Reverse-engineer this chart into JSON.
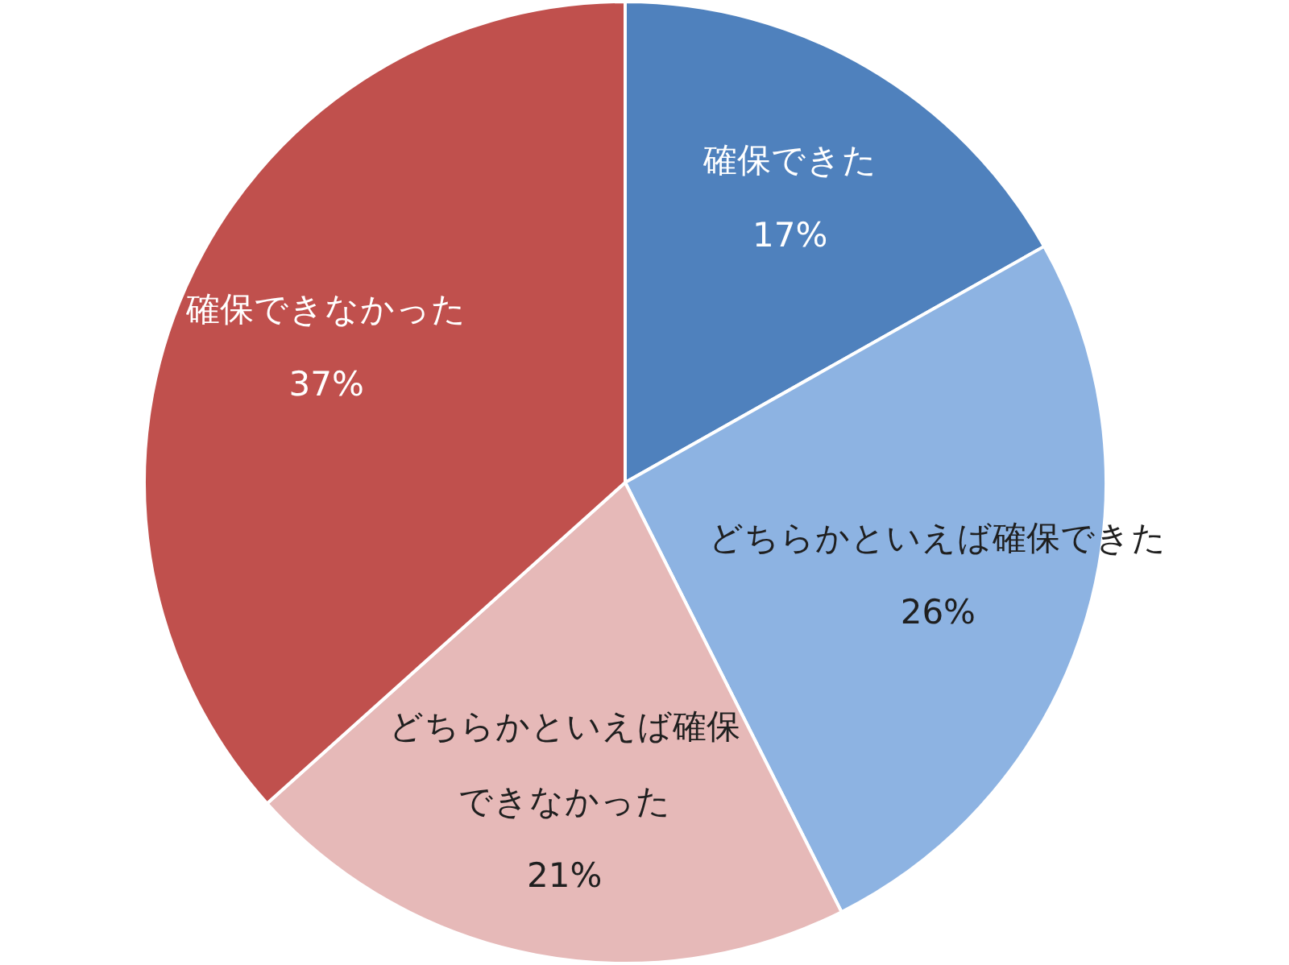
{
  "chart_data": {
    "type": "pie",
    "categories": [
      "確保できた",
      "どちらかといえば確保できた",
      "どちらかといえば確保できなかった",
      "確保できなかった"
    ],
    "values": [
      17,
      26,
      21,
      37
    ],
    "colors": [
      "#4f81bd",
      "#8db3e2",
      "#e6b9b8",
      "#c0504d"
    ],
    "value_labels": [
      "17%",
      "26%",
      "21%",
      "37%"
    ],
    "legend": false
  }
}
